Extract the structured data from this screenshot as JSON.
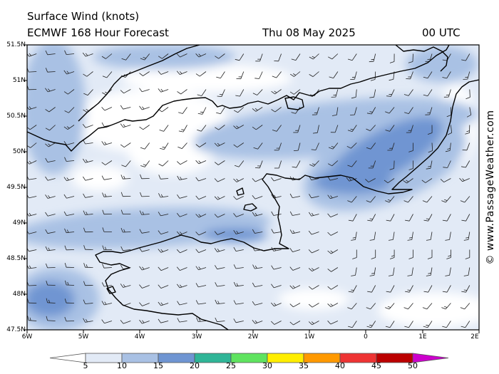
{
  "header": {
    "title": "Surface Wind (knots)",
    "subtitle": "ECMWF 168 Hour Forecast",
    "date": "Thu 08 May 2025",
    "time": "00 UTC"
  },
  "credit": "© www.PassageWeather.com",
  "map": {
    "lat_labels": [
      "51.5N",
      "51N",
      "50.5N",
      "50N",
      "49.5N",
      "49N",
      "48.5N",
      "48N",
      "47.5N"
    ],
    "lon_labels": [
      "6W",
      "5W",
      "4W",
      "3W",
      "2W",
      "1W",
      "0",
      "1E",
      "2E"
    ],
    "lat_range": [
      47.5,
      51.5
    ],
    "lon_range": [
      -6,
      2
    ],
    "wind_speed_fill_colors": [
      "#ffffff",
      "#e2eaf6",
      "#a9c1e4",
      "#6f95d2"
    ]
  },
  "colorbar": {
    "labels": [
      "5",
      "10",
      "15",
      "20",
      "25",
      "30",
      "35",
      "40",
      "45",
      "50"
    ],
    "colors": [
      "#ffffff",
      "#e2eaf6",
      "#a9c1e4",
      "#6f95d2",
      "#2fb597",
      "#5fe35f",
      "#ffee00",
      "#ff9900",
      "#ee3333",
      "#bb0000",
      "#cc00cc"
    ]
  }
}
